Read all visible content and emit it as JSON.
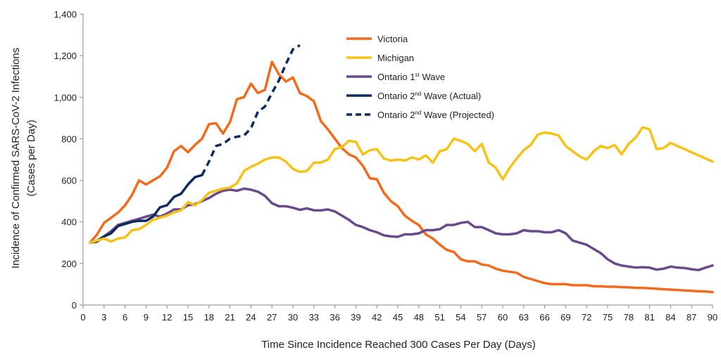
{
  "chart_data": {
    "type": "line",
    "xlabel": "Time Since Incidence Reached 300 Cases Per Day (Days)",
    "ylabel_line1": "Incidence of Confirmed SARS-CoV-2 Infections",
    "ylabel_line2": "(Cases per Day)",
    "xlim": [
      0,
      90
    ],
    "ylim": [
      0,
      1400
    ],
    "x_ticks": [
      0,
      3,
      6,
      9,
      12,
      15,
      18,
      21,
      24,
      27,
      30,
      33,
      36,
      39,
      42,
      45,
      48,
      51,
      54,
      57,
      60,
      63,
      66,
      69,
      72,
      75,
      78,
      81,
      84,
      87,
      90
    ],
    "y_ticks": [
      0,
      200,
      400,
      600,
      800,
      1000,
      1200,
      1400
    ],
    "y_tick_labels": [
      "0",
      "200",
      "400",
      "600",
      "800",
      "1,000",
      "1,200",
      "1,400"
    ],
    "grid": false,
    "legend_position": "top-center",
    "series": [
      {
        "name": "Victoria",
        "color": "#f26b1d",
        "dash": false,
        "x": [
          1,
          2,
          3,
          4,
          5,
          6,
          7,
          8,
          9,
          10,
          11,
          12,
          13,
          14,
          15,
          16,
          17,
          18,
          19,
          20,
          21,
          22,
          23,
          24,
          25,
          26,
          27,
          28,
          29,
          30,
          31,
          32,
          33,
          34,
          35,
          36,
          37,
          38,
          39,
          40,
          41,
          42,
          43,
          44,
          45,
          46,
          47,
          48,
          49,
          50,
          51,
          52,
          53,
          54,
          55,
          56,
          57,
          58,
          59,
          60,
          61,
          62,
          63,
          64,
          65,
          66,
          67,
          68,
          69,
          70,
          71,
          72,
          73,
          74,
          75,
          76,
          77,
          78,
          79,
          80,
          81,
          82,
          83,
          84,
          85,
          86,
          87,
          88,
          89,
          90
        ],
        "values": [
          300,
          340,
          395,
          420,
          445,
          480,
          530,
          600,
          580,
          600,
          620,
          660,
          740,
          765,
          735,
          770,
          800,
          870,
          875,
          825,
          880,
          990,
          1000,
          1065,
          1020,
          1035,
          1170,
          1110,
          1075,
          1095,
          1020,
          1005,
          980,
          885,
          845,
          800,
          755,
          725,
          710,
          670,
          610,
          605,
          540,
          500,
          475,
          430,
          405,
          385,
          340,
          320,
          290,
          265,
          255,
          220,
          210,
          210,
          195,
          190,
          175,
          165,
          160,
          155,
          135,
          125,
          115,
          105,
          100,
          100,
          100,
          95,
          95,
          95,
          90,
          90,
          88,
          88,
          86,
          85,
          83,
          82,
          80,
          78,
          76,
          74,
          72,
          70,
          68,
          66,
          65,
          62
        ]
      },
      {
        "name": "Michigan",
        "color": "#f5c217",
        "dash": false,
        "x": [
          1,
          2,
          3,
          4,
          5,
          6,
          7,
          8,
          9,
          10,
          11,
          12,
          13,
          14,
          15,
          16,
          17,
          18,
          19,
          20,
          21,
          22,
          23,
          24,
          25,
          26,
          27,
          28,
          29,
          30,
          31,
          32,
          33,
          34,
          35,
          36,
          37,
          38,
          39,
          40,
          41,
          42,
          43,
          44,
          45,
          46,
          47,
          48,
          49,
          50,
          51,
          52,
          53,
          54,
          55,
          56,
          57,
          58,
          59,
          60,
          61,
          62,
          63,
          64,
          65,
          66,
          67,
          68,
          69,
          70,
          71,
          72,
          73,
          74,
          75,
          76,
          77,
          78,
          79,
          80,
          81,
          82,
          83,
          84,
          85,
          86,
          87,
          88,
          89,
          90
        ],
        "values": [
          300,
          310,
          320,
          305,
          320,
          325,
          360,
          365,
          385,
          410,
          420,
          430,
          445,
          455,
          495,
          480,
          505,
          540,
          550,
          560,
          565,
          585,
          645,
          665,
          680,
          700,
          710,
          710,
          690,
          655,
          640,
          645,
          685,
          685,
          700,
          750,
          760,
          790,
          785,
          725,
          745,
          750,
          705,
          695,
          700,
          695,
          710,
          700,
          720,
          685,
          740,
          750,
          800,
          790,
          775,
          740,
          775,
          685,
          660,
          605,
          660,
          705,
          745,
          770,
          820,
          830,
          825,
          815,
          765,
          740,
          715,
          700,
          740,
          765,
          755,
          770,
          725,
          775,
          805,
          855,
          845,
          750,
          755,
          780,
          765,
          750,
          735,
          720,
          705,
          690
        ]
      },
      {
        "name": "Ontario 1st Wave",
        "color": "#6b4a8b",
        "dash": false,
        "x": [
          1,
          2,
          3,
          4,
          5,
          6,
          7,
          8,
          9,
          10,
          11,
          12,
          13,
          14,
          15,
          16,
          17,
          18,
          19,
          20,
          21,
          22,
          23,
          24,
          25,
          26,
          27,
          28,
          29,
          30,
          31,
          32,
          33,
          34,
          35,
          36,
          37,
          38,
          39,
          40,
          41,
          42,
          43,
          44,
          45,
          46,
          47,
          48,
          49,
          50,
          51,
          52,
          53,
          54,
          55,
          56,
          57,
          58,
          59,
          60,
          61,
          62,
          63,
          64,
          65,
          66,
          67,
          68,
          69,
          70,
          71,
          72,
          73,
          74,
          75,
          76,
          77,
          78,
          79,
          80,
          81,
          82,
          83,
          84,
          85,
          86,
          87,
          88,
          89,
          90
        ],
        "values": [
          300,
          310,
          330,
          355,
          385,
          395,
          405,
          415,
          425,
          435,
          425,
          440,
          460,
          460,
          480,
          485,
          500,
          515,
          535,
          550,
          555,
          550,
          560,
          555,
          545,
          525,
          490,
          475,
          475,
          468,
          458,
          465,
          456,
          455,
          460,
          450,
          430,
          410,
          385,
          375,
          360,
          350,
          335,
          330,
          328,
          340,
          340,
          345,
          360,
          360,
          365,
          385,
          385,
          395,
          400,
          375,
          375,
          360,
          345,
          340,
          340,
          345,
          360,
          355,
          355,
          350,
          350,
          360,
          345,
          310,
          300,
          290,
          270,
          250,
          220,
          200,
          190,
          185,
          180,
          182,
          180,
          170,
          175,
          185,
          180,
          178,
          172,
          168,
          180,
          190
        ]
      },
      {
        "name": "Ontario 2nd Wave (Actual)",
        "color": "#0f2a5c",
        "dash": false,
        "x": [
          1,
          2,
          3,
          4,
          5,
          6,
          7,
          8,
          9,
          10,
          11,
          12,
          13,
          14,
          15,
          16,
          17
        ],
        "values": [
          300,
          305,
          330,
          345,
          380,
          390,
          400,
          405,
          405,
          425,
          470,
          480,
          520,
          535,
          580,
          615,
          625
        ]
      },
      {
        "name": "Ontario 2nd Wave (Projected)",
        "color": "#0f2a5c",
        "dash": true,
        "x": [
          17,
          18,
          19,
          20,
          21,
          22,
          23,
          24,
          25,
          26,
          27,
          28,
          29,
          30,
          31
        ],
        "values": [
          625,
          690,
          765,
          775,
          800,
          810,
          815,
          850,
          930,
          955,
          1020,
          1080,
          1160,
          1230,
          1250
        ]
      }
    ]
  }
}
